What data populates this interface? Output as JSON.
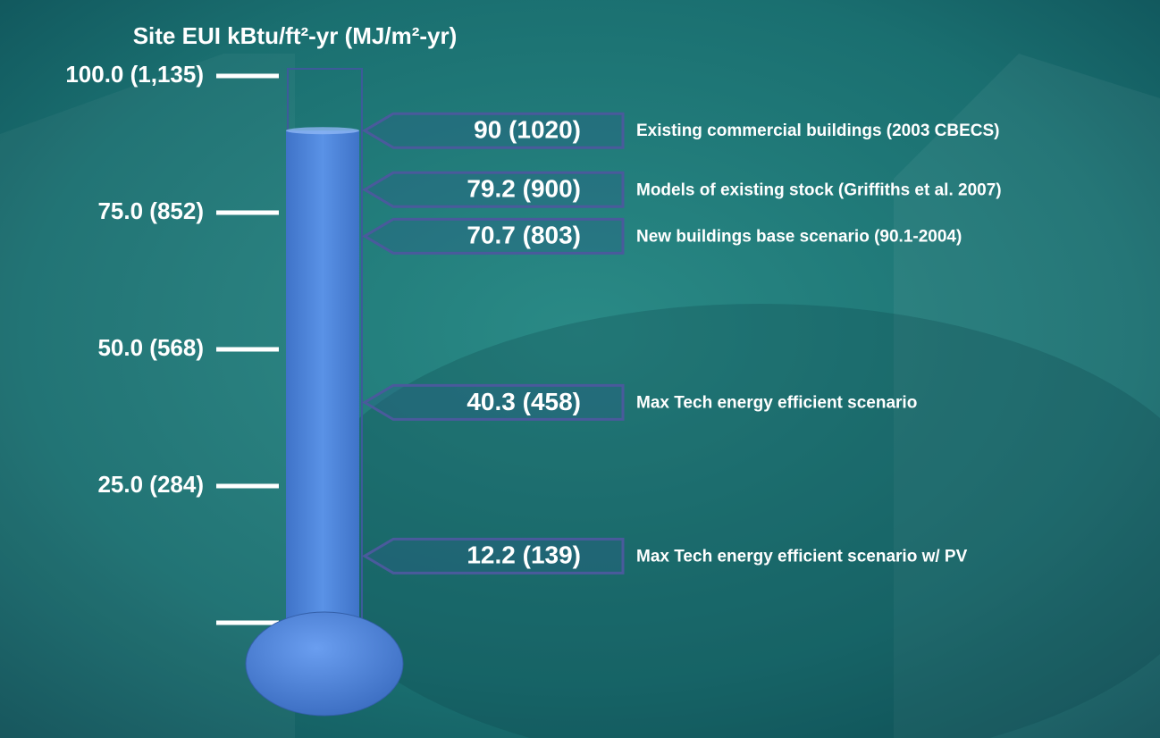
{
  "chart_data": {
    "type": "thermometer",
    "title": "Site EUI kBtu/ft²-yr (MJ/m²-yr)",
    "ylim": [
      0,
      100
    ],
    "yticks": [
      {
        "value": 0,
        "label": null
      },
      {
        "value": 25,
        "label": "25.0 (284)"
      },
      {
        "value": 50,
        "label": "50.0 (568)"
      },
      {
        "value": 75,
        "label": "75.0 (852)"
      },
      {
        "value": 100,
        "label": "100.0 (1,135)"
      }
    ],
    "categories": [
      "Existing commercial buildings (2003 CBECS)",
      "Models of existing stock (Griffiths et al. 2007)",
      "New buildings base scenario (90.1-2004)",
      "Max Tech energy efficient scenario",
      "Max Tech energy efficient scenario w/ PV"
    ],
    "values": [
      90,
      79.2,
      70.7,
      40.3,
      12.2
    ],
    "value_labels": [
      "90 (1020)",
      "79.2 (900)",
      "70.7 (803)",
      "40.3 (458)",
      "12.2 (139)"
    ],
    "color": "#4a80d6"
  }
}
